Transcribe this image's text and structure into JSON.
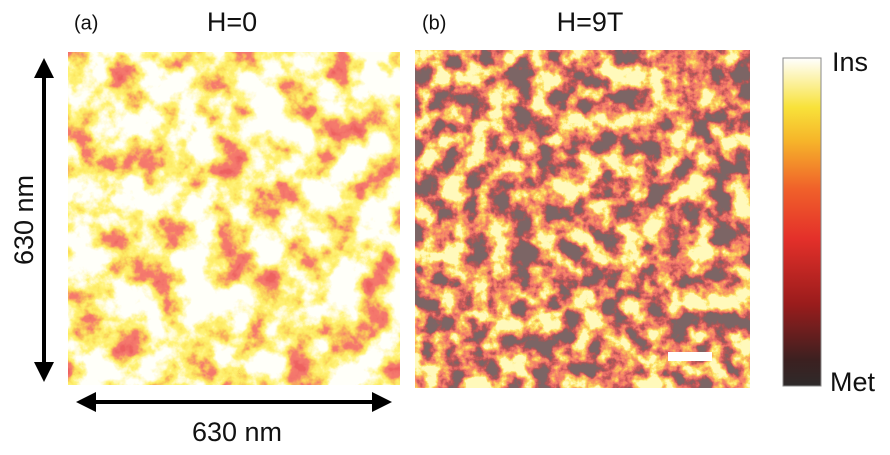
{
  "panels": [
    {
      "label": "(a)",
      "title": "H=0"
    },
    {
      "label": "(b)",
      "title": "H=9T"
    }
  ],
  "axes": {
    "vertical_label": "630 nm",
    "horizontal_label": "630 nm"
  },
  "colorbar": {
    "top_label": "Ins",
    "bottom_label": "Met"
  }
}
